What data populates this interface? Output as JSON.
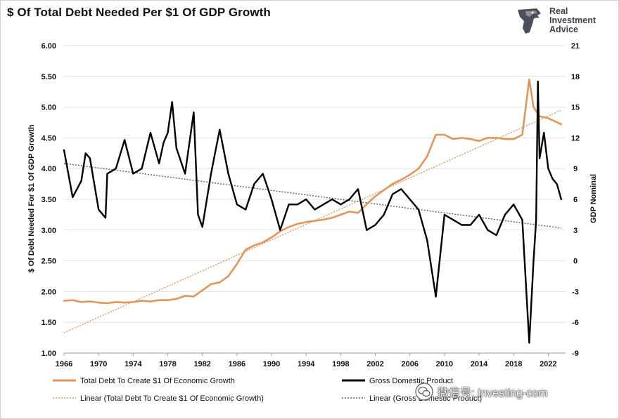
{
  "title": "$ Of Total Debt Needed Per $1 Of GDP Growth",
  "logo": {
    "line1": "Real",
    "line2": "Investment",
    "line3": "Advice",
    "icon": "eagle-head-icon"
  },
  "watermark": {
    "text": "微信号: Investing-com",
    "icon": "wechat-icon"
  },
  "colors": {
    "debt": "#e2955a",
    "gdp": "#000000",
    "debt_trend": "#e2955a",
    "gdp_trend": "#3d7a3d",
    "grid": "#e3e3e3"
  },
  "chart_data": {
    "type": "line",
    "ylabel_left": "$ Of Debt Needed For $1 Of GDP Growth",
    "ylabel_right": "GDP Nominal",
    "ylim_left": [
      1.0,
      6.0
    ],
    "ylim_right": [
      -9,
      21
    ],
    "xlim": [
      1966,
      2024
    ],
    "x_ticks": [
      "1966",
      "1970",
      "1974",
      "1978",
      "1982",
      "1986",
      "1990",
      "1994",
      "1998",
      "2002",
      "2006",
      "2010",
      "2014",
      "2018",
      "2022"
    ],
    "y_ticks_left": [
      "1.00",
      "1.50",
      "2.00",
      "2.50",
      "3.00",
      "3.50",
      "4.00",
      "4.50",
      "5.00",
      "5.50",
      "6.00"
    ],
    "y_ticks_right": [
      "-9",
      "-6",
      "-3",
      "0",
      "3",
      "6",
      "9",
      "12",
      "15",
      "18",
      "21"
    ],
    "grid": "horizontal",
    "legend_position": "bottom",
    "legend": {
      "debt": "Total Debt To Create $1 Of Economic Growth",
      "gdp": "Gross Domestic Product",
      "debt_trend": "Linear (Total Debt To Create $1 Of Economic Growth)",
      "gdp_trend": "Linear (Gross Domestic Product)"
    },
    "series": [
      {
        "name": "Total Debt To Create $1 Of Economic Growth",
        "axis": "left",
        "points": [
          [
            1966.0,
            1.85
          ],
          [
            1967.0,
            1.86
          ],
          [
            1968.0,
            1.83
          ],
          [
            1969.0,
            1.84
          ],
          [
            1970.0,
            1.82
          ],
          [
            1971.0,
            1.81
          ],
          [
            1972.0,
            1.83
          ],
          [
            1973.0,
            1.82
          ],
          [
            1974.0,
            1.83
          ],
          [
            1975.0,
            1.85
          ],
          [
            1976.0,
            1.84
          ],
          [
            1977.0,
            1.86
          ],
          [
            1978.0,
            1.86
          ],
          [
            1979.0,
            1.88
          ],
          [
            1980.0,
            1.93
          ],
          [
            1981.0,
            1.92
          ],
          [
            1982.0,
            2.02
          ],
          [
            1983.0,
            2.12
          ],
          [
            1984.0,
            2.15
          ],
          [
            1985.0,
            2.25
          ],
          [
            1986.0,
            2.45
          ],
          [
            1987.0,
            2.68
          ],
          [
            1988.0,
            2.75
          ],
          [
            1989.0,
            2.8
          ],
          [
            1990.0,
            2.88
          ],
          [
            1991.0,
            2.98
          ],
          [
            1992.0,
            3.05
          ],
          [
            1993.0,
            3.1
          ],
          [
            1994.0,
            3.13
          ],
          [
            1995.0,
            3.15
          ],
          [
            1996.0,
            3.17
          ],
          [
            1997.0,
            3.2
          ],
          [
            1998.0,
            3.25
          ],
          [
            1999.0,
            3.3
          ],
          [
            2000.0,
            3.28
          ],
          [
            2001.0,
            3.42
          ],
          [
            2002.0,
            3.55
          ],
          [
            2003.0,
            3.65
          ],
          [
            2004.0,
            3.75
          ],
          [
            2005.0,
            3.82
          ],
          [
            2006.0,
            3.9
          ],
          [
            2007.0,
            4.0
          ],
          [
            2008.0,
            4.2
          ],
          [
            2009.0,
            4.55
          ],
          [
            2010.0,
            4.55
          ],
          [
            2011.0,
            4.48
          ],
          [
            2012.0,
            4.5
          ],
          [
            2013.0,
            4.48
          ],
          [
            2014.0,
            4.45
          ],
          [
            2015.0,
            4.5
          ],
          [
            2016.0,
            4.5
          ],
          [
            2017.0,
            4.48
          ],
          [
            2018.0,
            4.48
          ],
          [
            2019.0,
            4.55
          ],
          [
            2019.8,
            5.45
          ],
          [
            2020.3,
            5.0
          ],
          [
            2021.0,
            4.85
          ],
          [
            2022.0,
            4.82
          ],
          [
            2023.5,
            4.72
          ]
        ]
      },
      {
        "name": "Gross Domestic Product",
        "axis": "right",
        "points": [
          [
            1966.0,
            10.8
          ],
          [
            1967.0,
            6.2
          ],
          [
            1968.0,
            7.8
          ],
          [
            1968.5,
            10.5
          ],
          [
            1969.0,
            10.0
          ],
          [
            1970.0,
            5.0
          ],
          [
            1970.8,
            4.2
          ],
          [
            1971.0,
            8.5
          ],
          [
            1972.0,
            9.0
          ],
          [
            1973.0,
            11.8
          ],
          [
            1974.0,
            8.5
          ],
          [
            1975.0,
            9.0
          ],
          [
            1976.0,
            12.5
          ],
          [
            1977.0,
            9.5
          ],
          [
            1977.5,
            11.5
          ],
          [
            1978.0,
            12.5
          ],
          [
            1978.5,
            15.5
          ],
          [
            1979.0,
            11.0
          ],
          [
            1980.0,
            8.5
          ],
          [
            1981.0,
            14.5
          ],
          [
            1981.5,
            4.5
          ],
          [
            1982.0,
            3.3
          ],
          [
            1983.0,
            8.5
          ],
          [
            1984.0,
            12.8
          ],
          [
            1985.0,
            8.5
          ],
          [
            1986.0,
            5.5
          ],
          [
            1987.0,
            5.0
          ],
          [
            1988.0,
            7.5
          ],
          [
            1989.0,
            8.5
          ],
          [
            1990.0,
            6.0
          ],
          [
            1991.0,
            3.0
          ],
          [
            1992.0,
            5.5
          ],
          [
            1993.0,
            5.5
          ],
          [
            1994.0,
            6.0
          ],
          [
            1995.0,
            5.0
          ],
          [
            1996.0,
            5.5
          ],
          [
            1997.0,
            6.0
          ],
          [
            1998.0,
            5.5
          ],
          [
            1999.0,
            6.0
          ],
          [
            2000.0,
            7.0
          ],
          [
            2001.0,
            3.0
          ],
          [
            2002.0,
            3.5
          ],
          [
            2003.0,
            4.5
          ],
          [
            2004.0,
            6.5
          ],
          [
            2005.0,
            7.0
          ],
          [
            2006.0,
            6.0
          ],
          [
            2007.0,
            5.0
          ],
          [
            2008.0,
            2.0
          ],
          [
            2009.0,
            -3.5
          ],
          [
            2010.0,
            4.5
          ],
          [
            2011.0,
            4.0
          ],
          [
            2012.0,
            3.5
          ],
          [
            2013.0,
            3.5
          ],
          [
            2014.0,
            4.5
          ],
          [
            2015.0,
            3.0
          ],
          [
            2016.0,
            2.5
          ],
          [
            2017.0,
            4.5
          ],
          [
            2018.0,
            5.5
          ],
          [
            2019.0,
            4.0
          ],
          [
            2019.8,
            -8.0
          ],
          [
            2020.3,
            0.0
          ],
          [
            2020.6,
            4.0
          ],
          [
            2020.8,
            17.5
          ],
          [
            2021.0,
            10.0
          ],
          [
            2021.5,
            12.5
          ],
          [
            2022.0,
            9.0
          ],
          [
            2022.5,
            8.0
          ],
          [
            2023.0,
            7.5
          ],
          [
            2023.5,
            6.0
          ]
        ]
      }
    ],
    "trendlines": [
      {
        "name": "Linear (Total Debt To Create $1 Of Economic Growth)",
        "axis": "left",
        "from": [
          1966,
          1.33
        ],
        "to": [
          2023.5,
          4.95
        ]
      },
      {
        "name": "Linear (Gross Domestic Product)",
        "axis": "right",
        "from": [
          1966,
          9.5
        ],
        "to": [
          2023.5,
          3.2
        ]
      }
    ]
  }
}
